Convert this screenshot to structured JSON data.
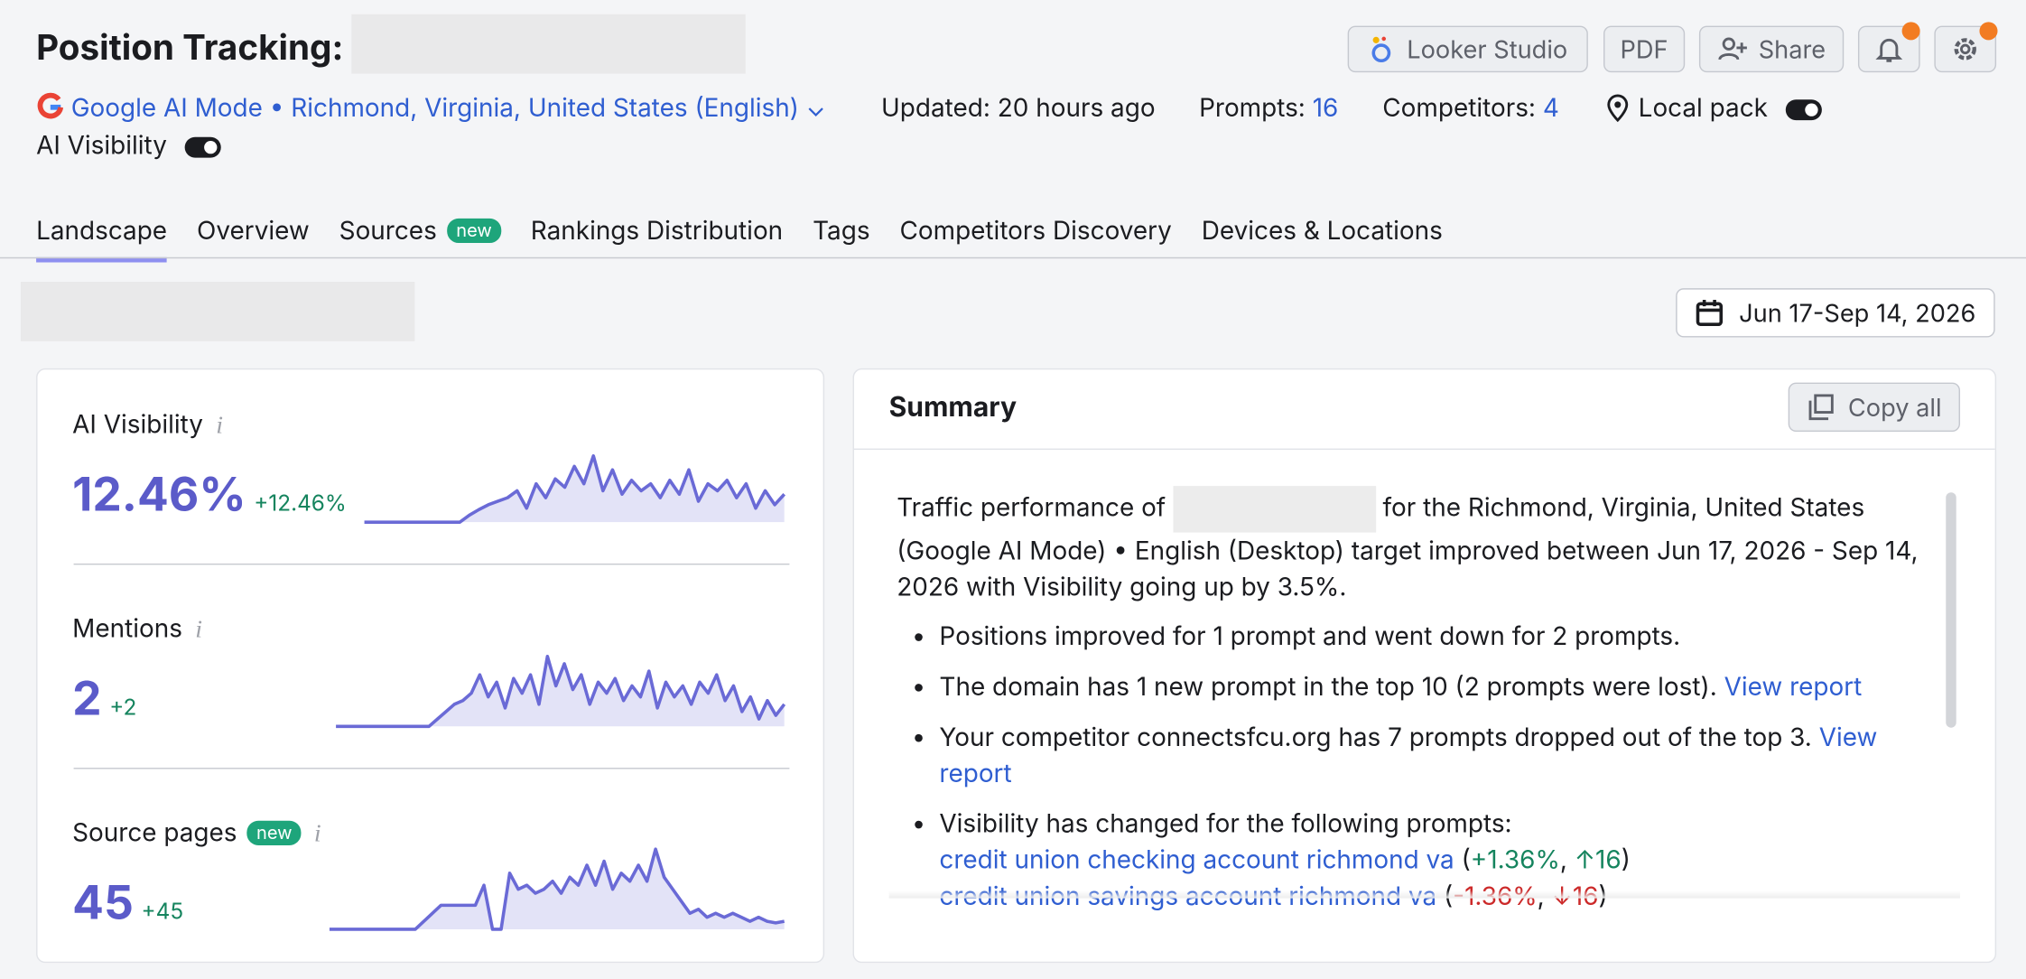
{
  "header": {
    "title": "Position Tracking:",
    "buttons": [
      "Looker Studio",
      "PDF",
      "Share"
    ]
  },
  "info": {
    "engine": "Google AI Mode • Richmond, Virginia, United States (English)",
    "updated": "Updated: 20 hours ago",
    "prompts_label": "Prompts:",
    "prompts": "16",
    "competitors_label": "Competitors:",
    "competitors": "4",
    "local_pack": "Local pack",
    "ai_visibility": "AI Visibility"
  },
  "tabs": [
    {
      "label": "Landscape"
    },
    {
      "label": "Overview"
    },
    {
      "label": "Sources",
      "badge": "new"
    },
    {
      "label": "Rankings Distribution"
    },
    {
      "label": "Tags"
    },
    {
      "label": "Competitors Discovery"
    },
    {
      "label": "Devices & Locations"
    }
  ],
  "date_range": "Jun 17-Sep 14, 2026",
  "metrics": [
    {
      "label": "AI Visibility",
      "value": "12.46%",
      "change": "+12.46%",
      "spark": {
        "ylim": [
          0,
          100
        ],
        "values": [
          0,
          0,
          0,
          0,
          0,
          0,
          0,
          0,
          0,
          0,
          0,
          10,
          18,
          25,
          30,
          35,
          45,
          20,
          55,
          35,
          62,
          50,
          80,
          55,
          95,
          45,
          75,
          40,
          60,
          45,
          55,
          35,
          60,
          40,
          75,
          30,
          55,
          45,
          60,
          35,
          55,
          20,
          45,
          25,
          40
        ]
      }
    },
    {
      "label": "Mentions",
      "value": "2",
      "change": "+2",
      "spark": {
        "ylim": [
          0,
          100
        ],
        "values": [
          0,
          0,
          0,
          0,
          0,
          0,
          0,
          0,
          0,
          0,
          0,
          0,
          10,
          20,
          30,
          35,
          45,
          70,
          40,
          60,
          25,
          65,
          45,
          70,
          30,
          95,
          55,
          85,
          50,
          70,
          30,
          60,
          45,
          65,
          35,
          55,
          40,
          75,
          25,
          60,
          40,
          55,
          30,
          60,
          45,
          70,
          35,
          55,
          20,
          40,
          10,
          35,
          15,
          30
        ]
      }
    },
    {
      "label": "Source pages",
      "badge": "new",
      "value": "45",
      "change": "+45",
      "spark": {
        "ylim": [
          0,
          100
        ],
        "values": [
          0,
          0,
          0,
          0,
          0,
          0,
          0,
          0,
          0,
          0,
          0,
          10,
          20,
          30,
          30,
          30,
          30,
          30,
          55,
          0,
          0,
          70,
          50,
          55,
          45,
          50,
          60,
          45,
          65,
          55,
          80,
          55,
          85,
          50,
          70,
          60,
          80,
          60,
          100,
          65,
          50,
          35,
          20,
          25,
          15,
          20,
          15,
          20,
          15,
          10,
          15,
          10,
          8,
          10
        ]
      }
    }
  ],
  "summary": {
    "title": "Summary",
    "copy": "Copy all",
    "intro": [
      "Traffic performance of",
      "for the Richmond, Virginia, United States (Google AI Mode) • English (Desktop) target improved between Jun 17, 2026 - Sep 14, 2026 with Visibility going up by 3.5%."
    ],
    "bullets": [
      [
        {
          "t": "Positions improved for 1 prompt and went down for 2 prompts.",
          "k": "plain"
        }
      ],
      [
        {
          "t": "The domain has 1 new prompt in the top 10 (2 prompts were lost). ",
          "k": "plain"
        },
        {
          "t": "View report",
          "k": "link"
        }
      ],
      [
        {
          "t": "Your competitor connectsfcu.org has 7 prompts dropped out of the top 3. ",
          "k": "plain"
        },
        {
          "t": "View report",
          "k": "link"
        }
      ],
      [
        {
          "t": "Visibility has changed for the following prompts:",
          "k": "plain"
        }
      ]
    ],
    "prompts": [
      [
        {
          "t": "credit union checking account richmond va",
          "k": "link"
        },
        {
          "t": " (",
          "k": "plain"
        },
        {
          "t": "+1.36%",
          "k": "up"
        },
        {
          "t": ", ",
          "k": "plain"
        },
        {
          "t": "↑16",
          "k": "up"
        },
        {
          "t": ")",
          "k": "plain"
        }
      ],
      [
        {
          "t": "credit union savings account richmond va",
          "k": "link"
        },
        {
          "t": " (",
          "k": "plain"
        },
        {
          "t": "-1.36%",
          "k": "down"
        },
        {
          "t": ", ",
          "k": "plain"
        },
        {
          "t": "↓16",
          "k": "down"
        },
        {
          "t": ")",
          "k": "plain"
        }
      ]
    ]
  }
}
